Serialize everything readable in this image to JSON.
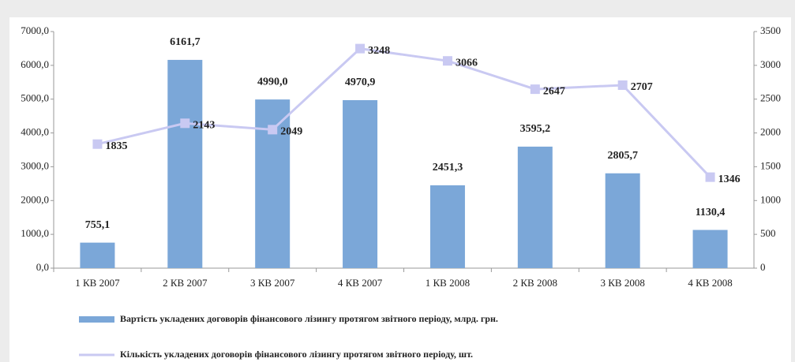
{
  "chart_data": {
    "type": "bar",
    "categories": [
      "1 КВ 2007",
      "2 КВ 2007",
      "3 КВ 2007",
      "4 КВ 2007",
      "1 КВ 2008",
      "2 КВ 2008",
      "3 КВ 2008",
      "4 КВ 2008"
    ],
    "series": [
      {
        "name": "Вартість укладених договорів фінансового лізингу протягом звітного періоду, млрд. грн.",
        "type": "bar",
        "color": "#7ba7d8",
        "values": [
          755.1,
          6161.7,
          4990.0,
          4970.9,
          2451.3,
          3595.2,
          2805.7,
          1130.4
        ],
        "value_labels": [
          "755,1",
          "6161,7",
          "4990,0",
          "4970,9",
          "2451,3",
          "3595,2",
          "2805,7",
          "1130,4"
        ]
      },
      {
        "name": "Кількість укладених договорів фінансового лізингу протягом звітного періоду, шт.",
        "type": "line",
        "axis": "y2",
        "color": "#c9c9f2",
        "values": [
          1835,
          2143,
          2049,
          3248,
          3066,
          2647,
          2707,
          1346
        ]
      }
    ],
    "ylim": [
      0,
      7000
    ],
    "yticks": [
      {
        "value": 0,
        "label": "0,0"
      },
      {
        "value": 1000,
        "label": "1000,0"
      },
      {
        "value": 2000,
        "label": "2000,0"
      },
      {
        "value": 3000,
        "label": "3000,0"
      },
      {
        "value": 4000,
        "label": "4000,0"
      },
      {
        "value": 5000,
        "label": "5000,0"
      },
      {
        "value": 6000,
        "label": "6000,0"
      },
      {
        "value": 7000,
        "label": "7000,0"
      }
    ],
    "y2lim": [
      0,
      3500
    ],
    "y2ticks": [
      0,
      500,
      1000,
      1500,
      2000,
      2500,
      3000,
      3500
    ],
    "legend": "bottom"
  }
}
